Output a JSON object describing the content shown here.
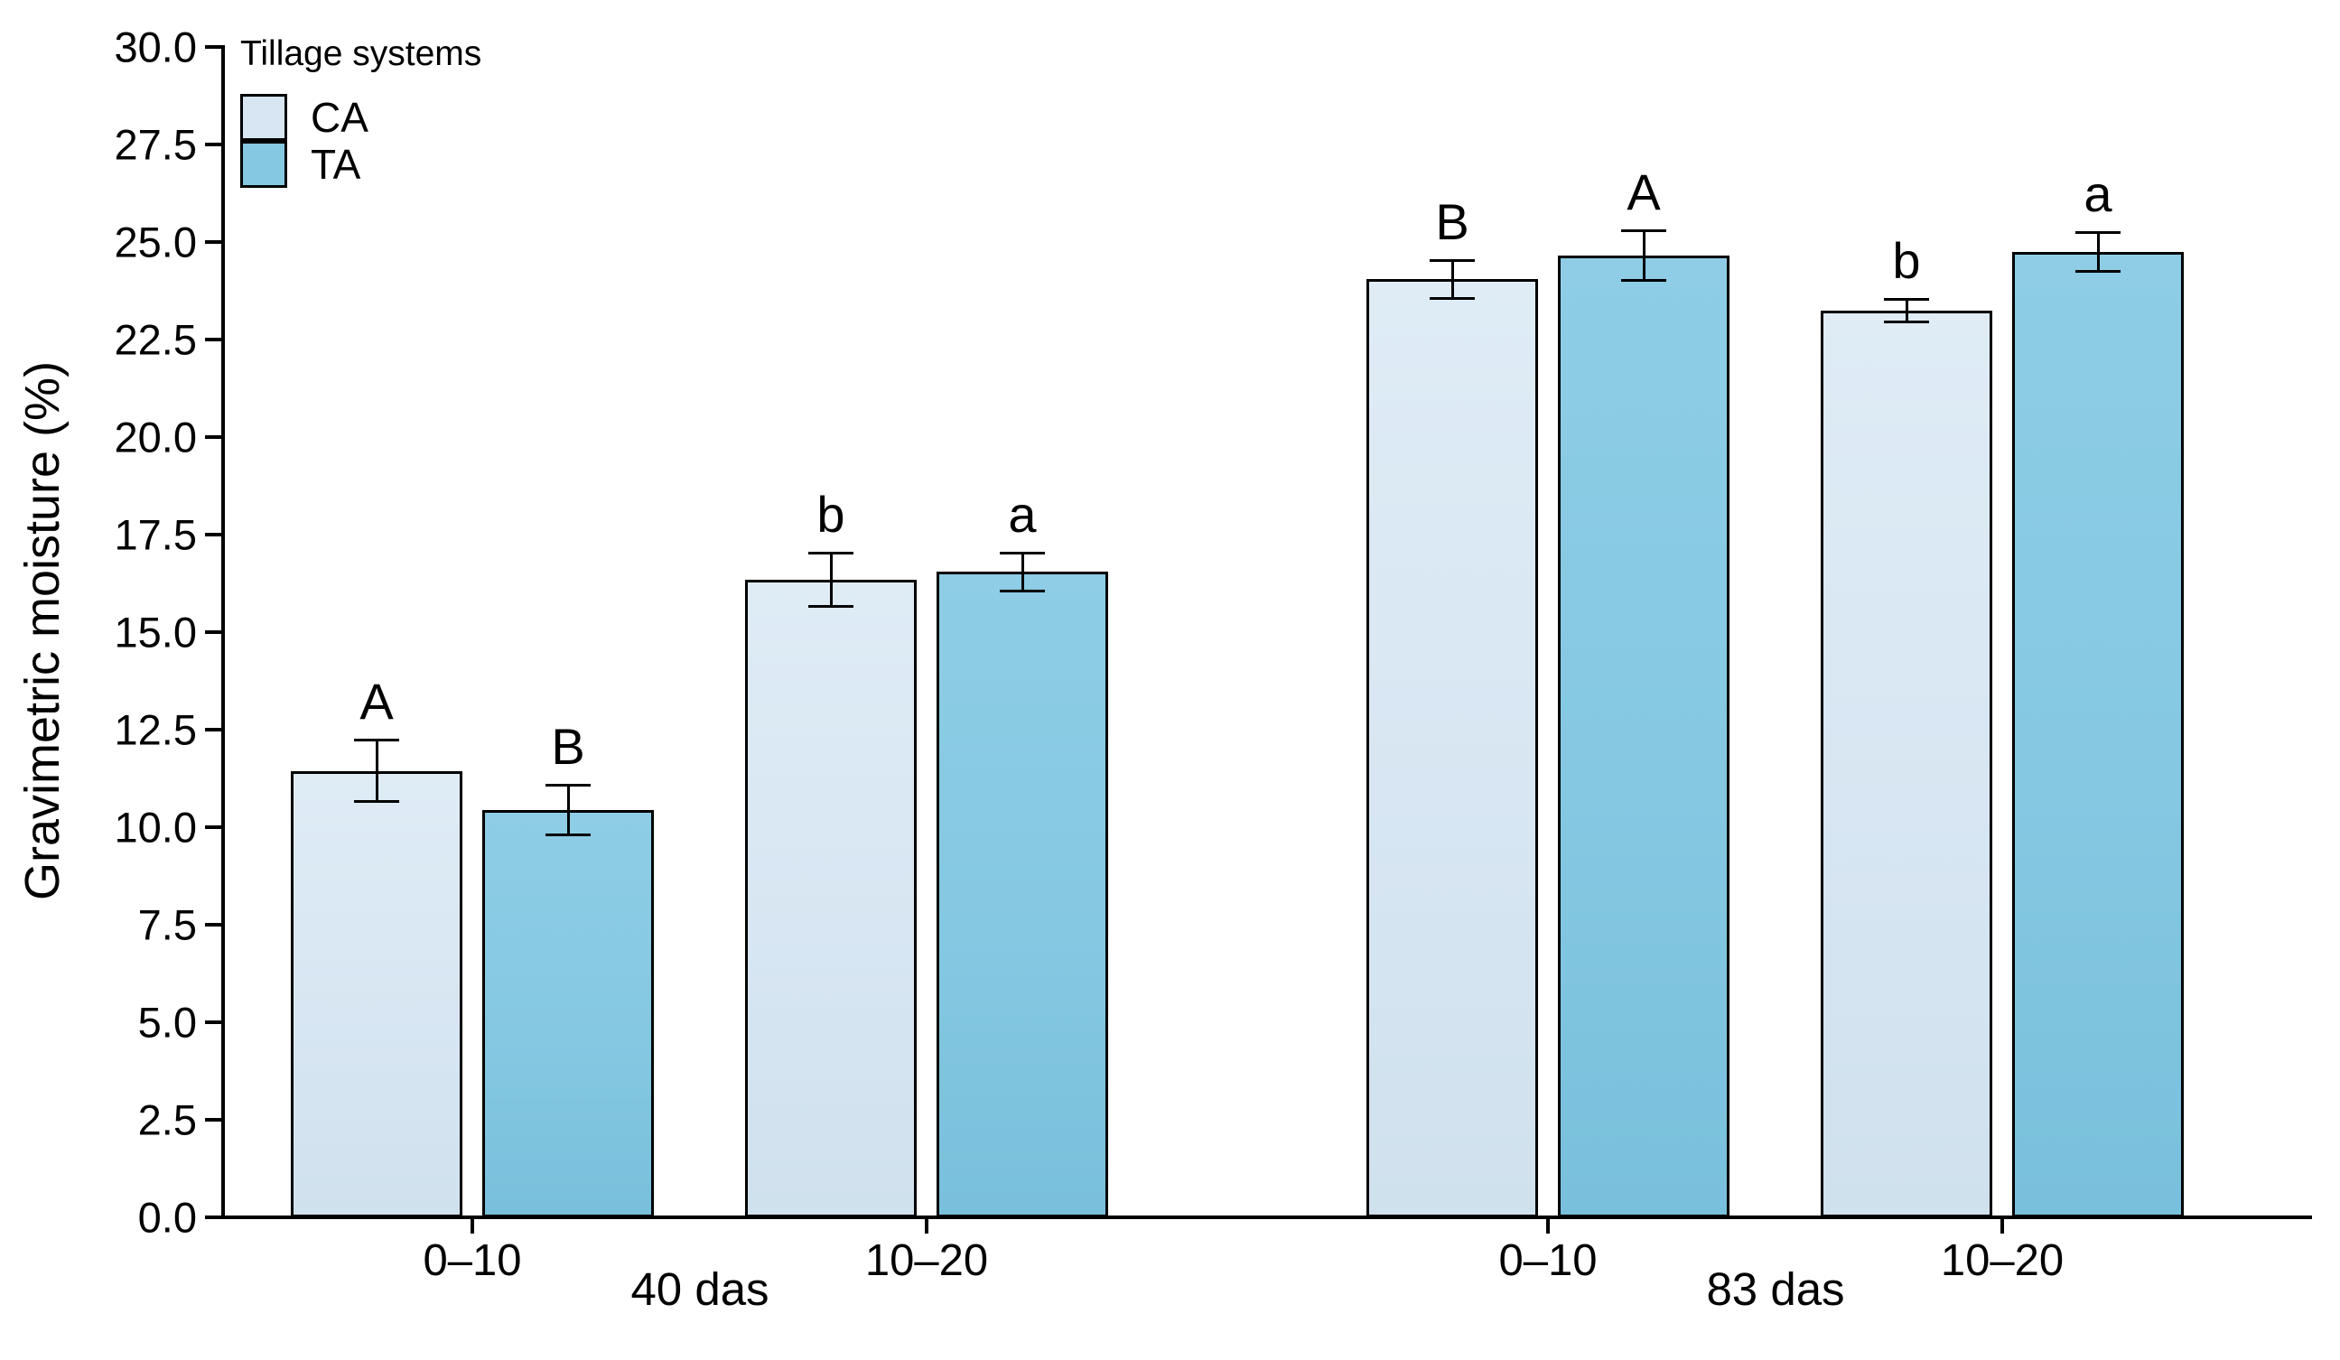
{
  "chart_data": {
    "type": "bar",
    "title": "",
    "ylabel": "Gravimetric moisture (%)",
    "xlabel": "",
    "ylim": [
      0,
      30
    ],
    "ytick_step": 2.5,
    "yticks": [
      "30.0",
      "27.5",
      "25.0",
      "22.5",
      "20.0",
      "17.5",
      "15.0",
      "12.5",
      "10.0",
      "7.5",
      "5.0",
      "2.5",
      "0.0"
    ],
    "grid": "off",
    "legend_position": "top-left-inside",
    "legend": {
      "title": "Tillage systems",
      "entries": [
        {
          "name": "CA",
          "color": "#d7e6f2"
        },
        {
          "name": "TA",
          "color": "#85c8e2"
        }
      ]
    },
    "colors": {
      "ca_fill": "#d7e6f2",
      "ta_fill": "#85c8e2",
      "bar_border": "#000000",
      "axis": "#000000",
      "text": "#000000",
      "background": "#ffffff"
    },
    "panels": [
      {
        "label": "40 das",
        "groups": [
          {
            "label": "0–10",
            "bars": [
              {
                "series": "CA",
                "value": 11.4,
                "error": 0.8,
                "letter": "A"
              },
              {
                "series": "TA",
                "value": 10.4,
                "error": 0.65,
                "letter": "B"
              }
            ]
          },
          {
            "label": "10–20",
            "bars": [
              {
                "series": "CA",
                "value": 16.3,
                "error": 0.7,
                "letter": "b"
              },
              {
                "series": "TA",
                "value": 16.5,
                "error": 0.5,
                "letter": "a"
              }
            ]
          }
        ]
      },
      {
        "label": "83 das",
        "groups": [
          {
            "label": "0–10",
            "bars": [
              {
                "series": "CA",
                "value": 24.0,
                "error": 0.5,
                "letter": "B"
              },
              {
                "series": "TA",
                "value": 24.6,
                "error": 0.65,
                "letter": "A"
              }
            ]
          },
          {
            "label": "10–20",
            "bars": [
              {
                "series": "CA",
                "value": 23.2,
                "error": 0.3,
                "letter": "b"
              },
              {
                "series": "TA",
                "value": 24.7,
                "error": 0.5,
                "letter": "a"
              }
            ]
          }
        ]
      }
    ]
  }
}
